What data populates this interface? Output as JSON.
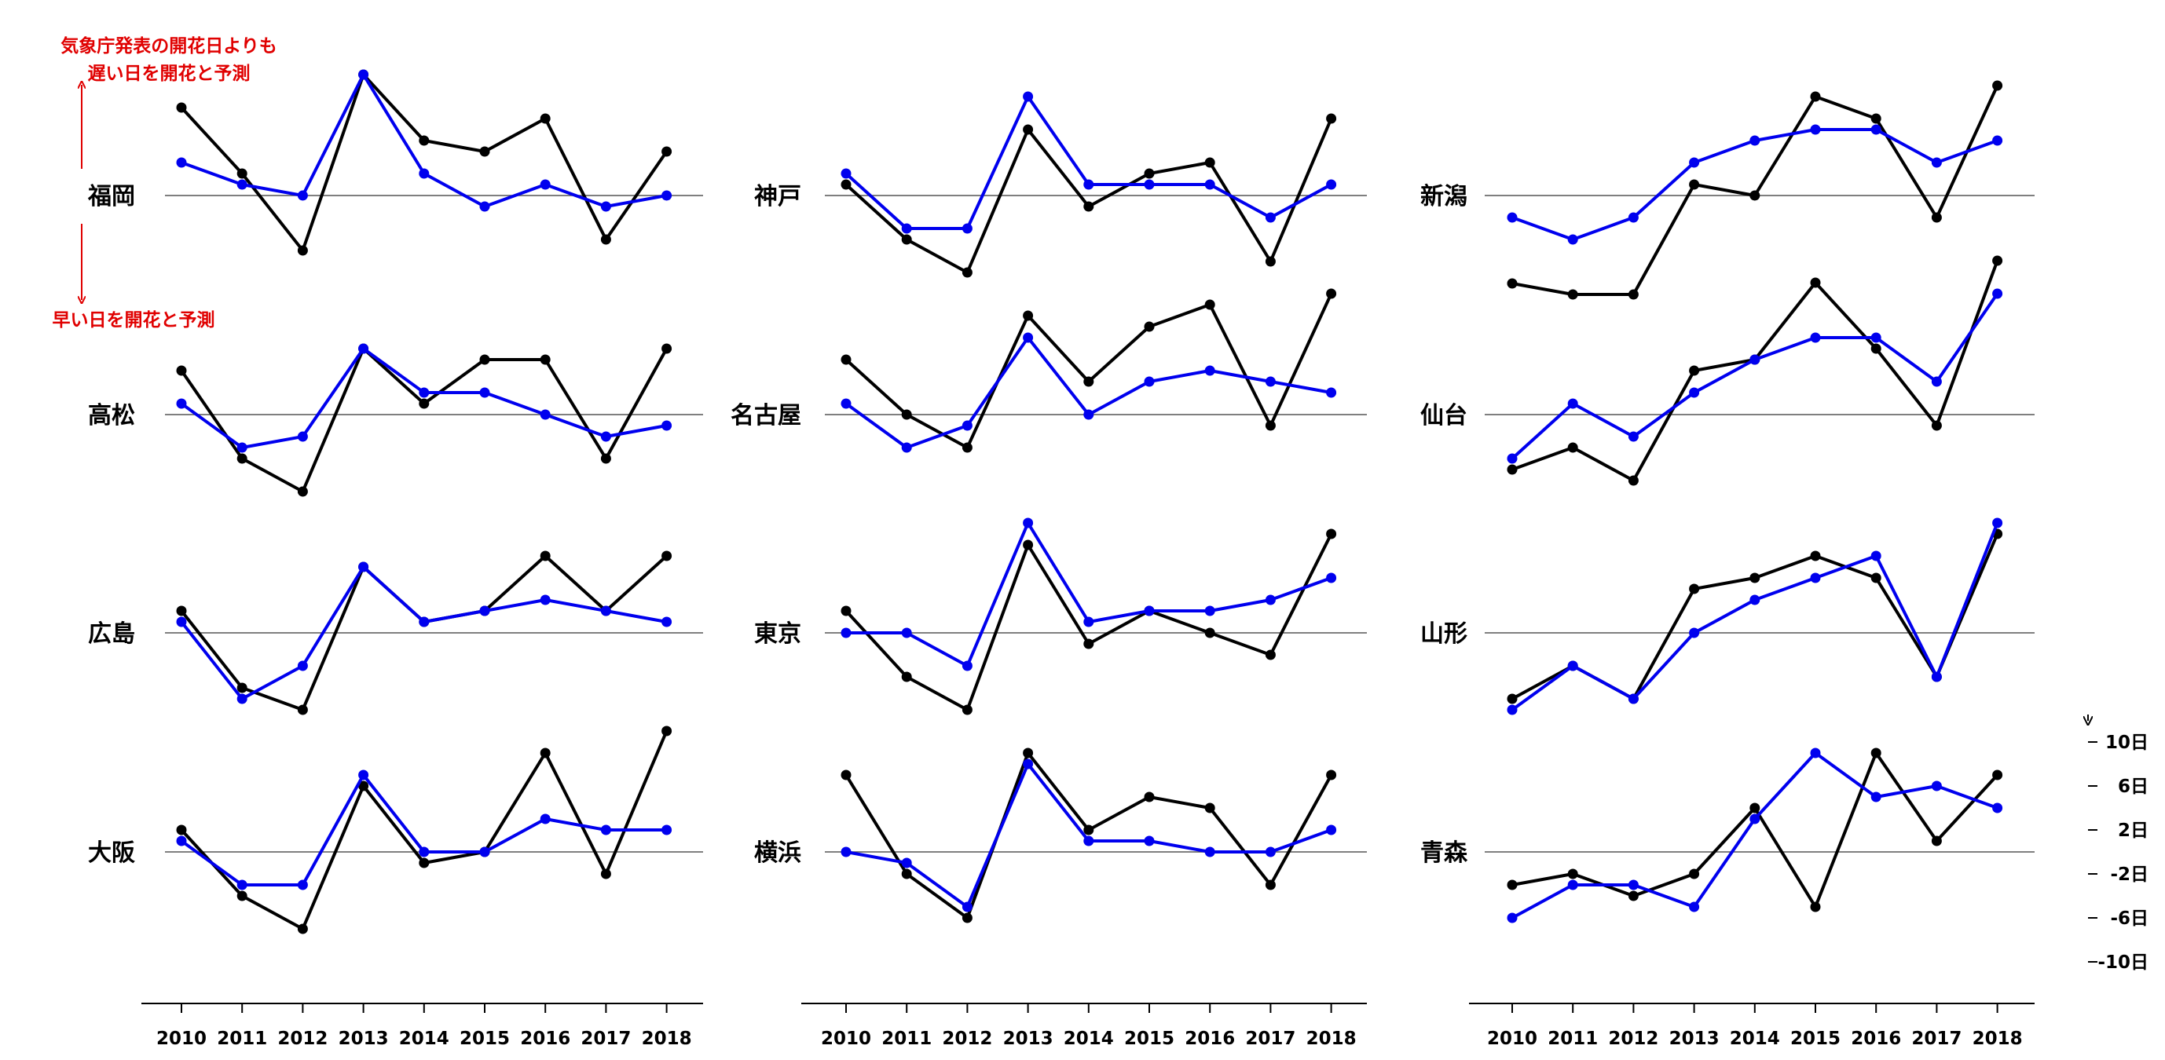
{
  "colors": {
    "observed": "#000000",
    "predicted": "#0000ee",
    "annotation": "#e00000",
    "baseline": "#555555"
  },
  "annotations": {
    "later_line1": "気象庁発表の開花日よりも",
    "later_line2": "遅い日を開花と予測",
    "earlier": "早い日を開花と予測"
  },
  "chart_data": {
    "type": "line",
    "x": [
      "2010",
      "2011",
      "2012",
      "2013",
      "2014",
      "2015",
      "2016",
      "2017",
      "2018"
    ],
    "ylim": [
      -12,
      12
    ],
    "yticks": [
      {
        "value": 10,
        "label": "10日"
      },
      {
        "value": 6,
        "label": "6日"
      },
      {
        "value": 2,
        "label": "2日"
      },
      {
        "value": -2,
        "label": "-2日"
      },
      {
        "value": -6,
        "label": "-6日"
      },
      {
        "value": -10,
        "label": "-10日"
      }
    ],
    "panels": [
      {
        "city": "福岡",
        "column": 0,
        "row": 0,
        "observed": [
          8,
          2,
          -5,
          11,
          5,
          4,
          7,
          -4,
          4
        ],
        "predicted": [
          3,
          1,
          0,
          11,
          2,
          -1,
          1,
          -1,
          0
        ]
      },
      {
        "city": "高松",
        "column": 0,
        "row": 1,
        "observed": [
          4,
          -4,
          -7,
          6,
          1,
          5,
          5,
          -4,
          6
        ],
        "predicted": [
          1,
          -3,
          -2,
          6,
          2,
          2,
          0,
          -2,
          -1
        ]
      },
      {
        "city": "広島",
        "column": 0,
        "row": 2,
        "observed": [
          2,
          -5,
          -7,
          6,
          1,
          2,
          7,
          2,
          7
        ],
        "predicted": [
          1,
          -6,
          -3,
          6,
          1,
          2,
          3,
          2,
          1
        ]
      },
      {
        "city": "大阪",
        "column": 0,
        "row": 3,
        "observed": [
          2,
          -4,
          -7,
          6,
          -1,
          0,
          9,
          -2,
          11
        ],
        "predicted": [
          1,
          -3,
          -3,
          7,
          0,
          0,
          3,
          2,
          2
        ]
      },
      {
        "city": "神戸",
        "column": 1,
        "row": 0,
        "observed": [
          1,
          -4,
          -7,
          6,
          -1,
          2,
          3,
          -6,
          7
        ],
        "predicted": [
          2,
          -3,
          -3,
          9,
          1,
          1,
          1,
          -2,
          1
        ]
      },
      {
        "city": "名古屋",
        "column": 1,
        "row": 1,
        "observed": [
          5,
          0,
          -3,
          9,
          3,
          8,
          10,
          -1,
          11
        ],
        "predicted": [
          1,
          -3,
          -1,
          7,
          0,
          3,
          4,
          3,
          2
        ]
      },
      {
        "city": "東京",
        "column": 1,
        "row": 2,
        "observed": [
          2,
          -4,
          -7,
          8,
          -1,
          2,
          0,
          -2,
          9
        ],
        "predicted": [
          0,
          0,
          -3,
          10,
          1,
          2,
          2,
          3,
          5
        ]
      },
      {
        "city": "横浜",
        "column": 1,
        "row": 3,
        "observed": [
          7,
          -2,
          -6,
          9,
          2,
          5,
          4,
          -3,
          7
        ],
        "predicted": [
          0,
          -1,
          -5,
          8,
          1,
          1,
          0,
          0,
          2
        ]
      },
      {
        "city": "新潟",
        "column": 2,
        "row": 0,
        "observed": [
          -8,
          -9,
          -9,
          1,
          0,
          9,
          7,
          -2,
          10
        ],
        "predicted": [
          -2,
          -4,
          -2,
          3,
          5,
          6,
          6,
          3,
          5
        ]
      },
      {
        "city": "仙台",
        "column": 2,
        "row": 1,
        "observed": [
          -5,
          -3,
          -6,
          4,
          5,
          12,
          6,
          -1,
          14
        ],
        "predicted": [
          -4,
          1,
          -2,
          2,
          5,
          7,
          7,
          3,
          11
        ]
      },
      {
        "city": "山形",
        "column": 2,
        "row": 2,
        "observed": [
          -6,
          -3,
          -6,
          4,
          5,
          7,
          5,
          -4,
          9
        ],
        "predicted": [
          -7,
          -3,
          -6,
          0,
          3,
          5,
          7,
          -4,
          10
        ]
      },
      {
        "city": "青森",
        "column": 2,
        "row": 3,
        "observed": [
          -3,
          -2,
          -4,
          -2,
          4,
          -5,
          9,
          1,
          7
        ],
        "predicted": [
          -6,
          -3,
          -3,
          -5,
          3,
          9,
          5,
          6,
          4
        ]
      }
    ]
  }
}
